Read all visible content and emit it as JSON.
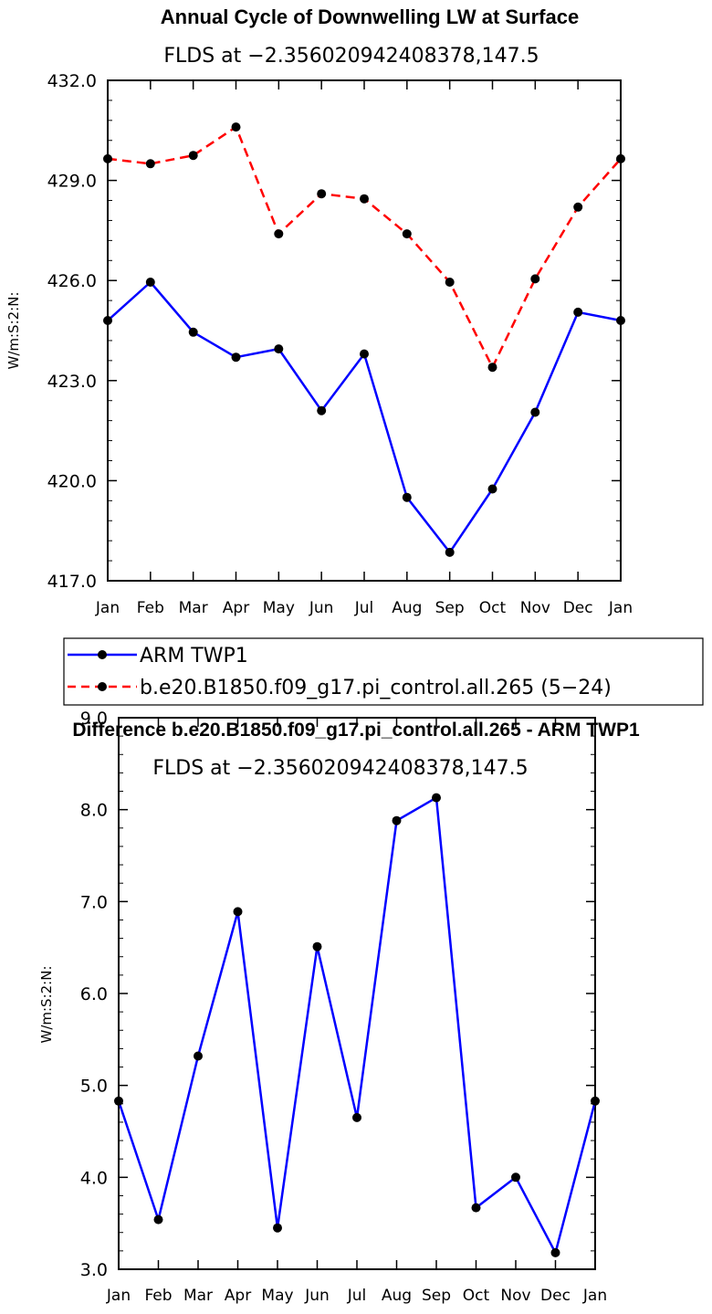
{
  "chart_data": [
    {
      "type": "line",
      "title": "Annual Cycle of Downwelling LW at Surface",
      "subtitle": "FLDS at −2.356020942408378,147.5",
      "xlabel": "",
      "ylabel": "W/m:S:2:N:",
      "categories": [
        "Jan",
        "Feb",
        "Mar",
        "Apr",
        "May",
        "Jun",
        "Jul",
        "Aug",
        "Sep",
        "Oct",
        "Nov",
        "Dec",
        "Jan"
      ],
      "ylim": [
        417.0,
        432.0
      ],
      "yticks": [
        "417.0",
        "420.0",
        "423.0",
        "426.0",
        "429.0",
        "432.0"
      ],
      "grid": false,
      "legend_position": "bottom",
      "series": [
        {
          "name": "ARM TWP1",
          "color": "#0000ff",
          "dash": "solid",
          "values": [
            424.8,
            425.95,
            424.45,
            423.7,
            423.95,
            422.1,
            423.8,
            419.5,
            417.85,
            419.75,
            422.05,
            425.05,
            424.8
          ]
        },
        {
          "name": "b.e20.B1850.f09_g17.pi_control.all.265 (5−24)",
          "color": "#ff0000",
          "dash": "dashed",
          "values": [
            429.65,
            429.5,
            429.75,
            430.6,
            427.4,
            428.6,
            428.45,
            427.4,
            425.95,
            423.4,
            426.05,
            428.2,
            429.65
          ]
        }
      ]
    },
    {
      "type": "line",
      "title": "Difference b.e20.B1850.f09_g17.pi_control.all.265 - ARM TWP1",
      "subtitle": "FLDS at −2.356020942408378,147.5",
      "xlabel": "",
      "ylabel": "W/m:S:2:N:",
      "categories": [
        "Jan",
        "Feb",
        "Mar",
        "Apr",
        "May",
        "Jun",
        "Jul",
        "Aug",
        "Sep",
        "Oct",
        "Nov",
        "Dec",
        "Jan"
      ],
      "ylim": [
        3.0,
        9.0
      ],
      "yticks": [
        "3.0",
        "4.0",
        "5.0",
        "6.0",
        "7.0",
        "8.0",
        "9.0"
      ],
      "grid": false,
      "series": [
        {
          "color": "#0000ff",
          "dash": "solid",
          "values": [
            4.83,
            3.54,
            5.32,
            6.89,
            3.45,
            6.51,
            4.65,
            7.88,
            8.13,
            3.67,
            4.0,
            3.18,
            4.83
          ]
        }
      ]
    }
  ]
}
